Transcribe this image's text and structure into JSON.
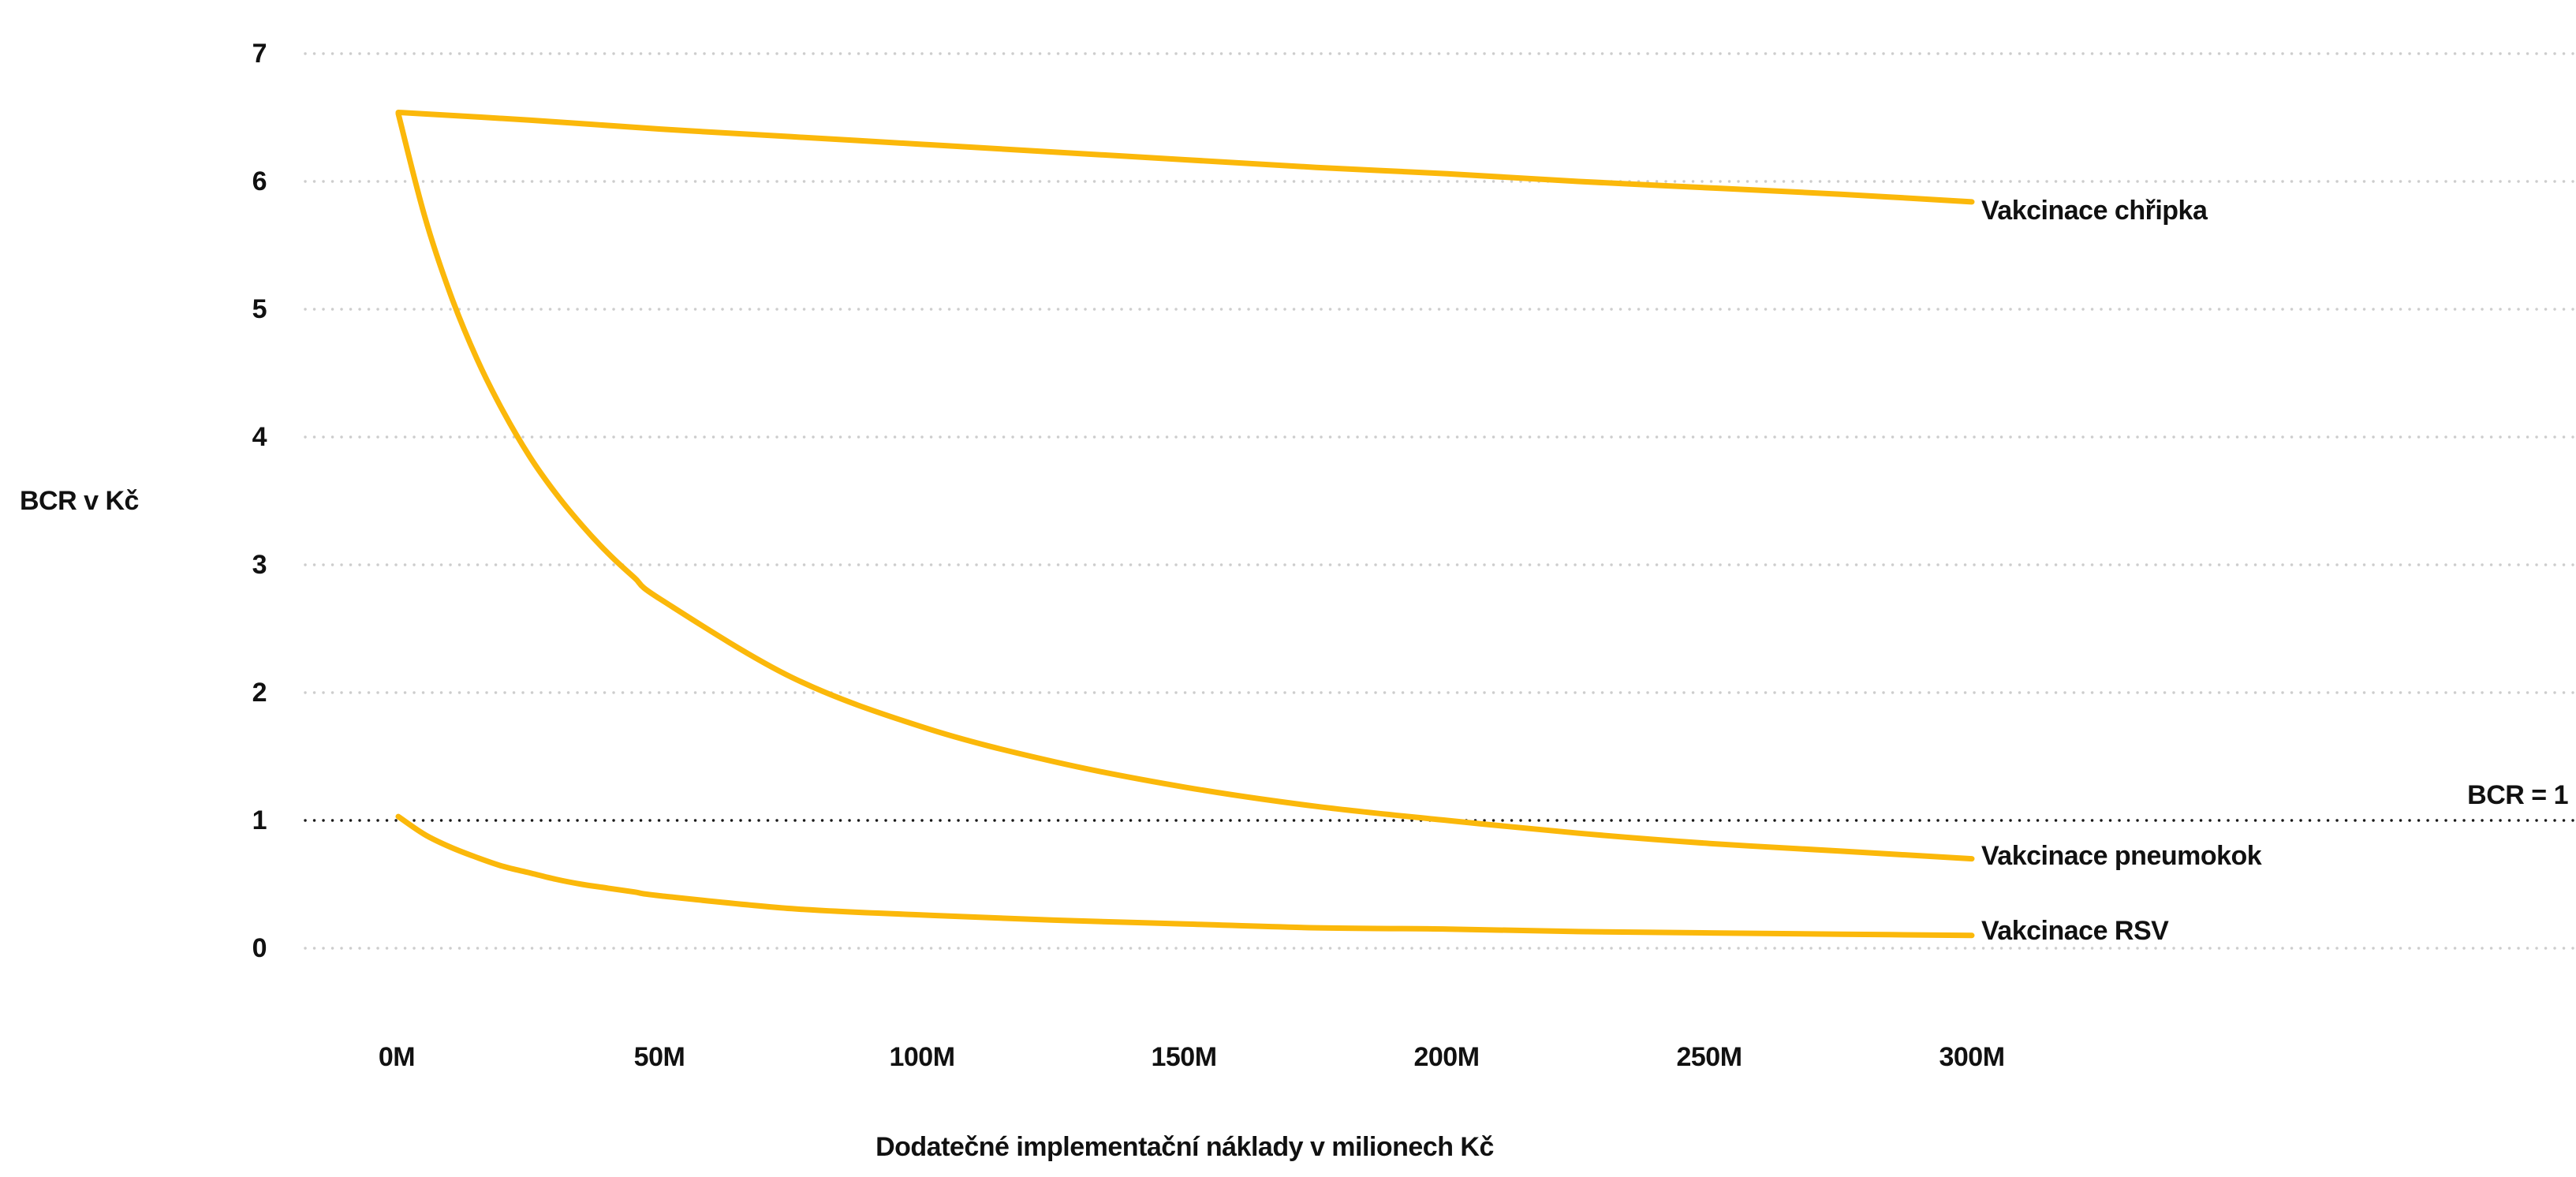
{
  "chart_data": {
    "type": "line",
    "title": "",
    "xlabel": "Dodatečné implementační náklady v milionech Kč",
    "ylabel": "BCR v Kč",
    "x_unit": "millions CZK",
    "xlim_m": [
      0,
      300
    ],
    "ylim": [
      0,
      7
    ],
    "xticks": [
      "0M",
      "50M",
      "100M",
      "150M",
      "200M",
      "250M",
      "300M"
    ],
    "xtick_values_m": [
      0,
      50,
      100,
      150,
      200,
      250,
      300
    ],
    "yticks": [
      "7",
      "6",
      "5",
      "4",
      "3",
      "2",
      "1",
      "0"
    ],
    "ytick_values": [
      7,
      6,
      5,
      4,
      3,
      2,
      1,
      0
    ],
    "grid": "horizontal dotted gridlines, no axis lines",
    "legend_position": "labels at right end of each line",
    "colors": {
      "line": "#FBB80A",
      "grid_dots": "#CDCDCD",
      "reference_dots": "#1A1A1A",
      "text": "#111111",
      "background": "#FFFFFF"
    },
    "reference_line": {
      "label": "BCR = 1",
      "value": 1,
      "style": "dotted-black"
    },
    "series": [
      {
        "name": "Vakcinace chřipka",
        "points_m_bcr": [
          [
            0,
            6.54
          ],
          [
            25,
            6.48
          ],
          [
            50,
            6.41
          ],
          [
            75,
            6.35
          ],
          [
            100,
            6.29
          ],
          [
            125,
            6.23
          ],
          [
            150,
            6.17
          ],
          [
            175,
            6.11
          ],
          [
            200,
            6.06
          ],
          [
            225,
            6.0
          ],
          [
            250,
            5.95
          ],
          [
            275,
            5.9
          ],
          [
            300,
            5.84
          ]
        ]
      },
      {
        "name": "Vakcinace pneumokok",
        "points_m_bcr": [
          [
            0,
            6.53
          ],
          [
            5,
            5.73
          ],
          [
            10,
            5.11
          ],
          [
            15,
            4.61
          ],
          [
            20,
            4.2
          ],
          [
            25,
            3.85
          ],
          [
            30,
            3.56
          ],
          [
            35,
            3.31
          ],
          [
            40,
            3.09
          ],
          [
            45,
            2.9
          ],
          [
            50,
            2.73
          ],
          [
            75,
            2.12
          ],
          [
            100,
            1.73
          ],
          [
            125,
            1.46
          ],
          [
            150,
            1.26
          ],
          [
            175,
            1.11
          ],
          [
            200,
            1.0
          ],
          [
            225,
            0.9
          ],
          [
            250,
            0.82
          ],
          [
            275,
            0.76
          ],
          [
            300,
            0.7
          ]
        ]
      },
      {
        "name": "Vakcinace RSV",
        "points_m_bcr": [
          [
            0,
            1.03
          ],
          [
            5,
            0.89
          ],
          [
            10,
            0.79
          ],
          [
            15,
            0.71
          ],
          [
            20,
            0.64
          ],
          [
            25,
            0.59
          ],
          [
            30,
            0.54
          ],
          [
            35,
            0.5
          ],
          [
            40,
            0.47
          ],
          [
            45,
            0.44
          ],
          [
            50,
            0.41
          ],
          [
            75,
            0.31
          ],
          [
            100,
            0.26
          ],
          [
            125,
            0.22
          ],
          [
            150,
            0.19
          ],
          [
            175,
            0.16
          ],
          [
            200,
            0.15
          ],
          [
            225,
            0.13
          ],
          [
            250,
            0.12
          ],
          [
            275,
            0.11
          ],
          [
            300,
            0.1
          ]
        ]
      }
    ]
  }
}
